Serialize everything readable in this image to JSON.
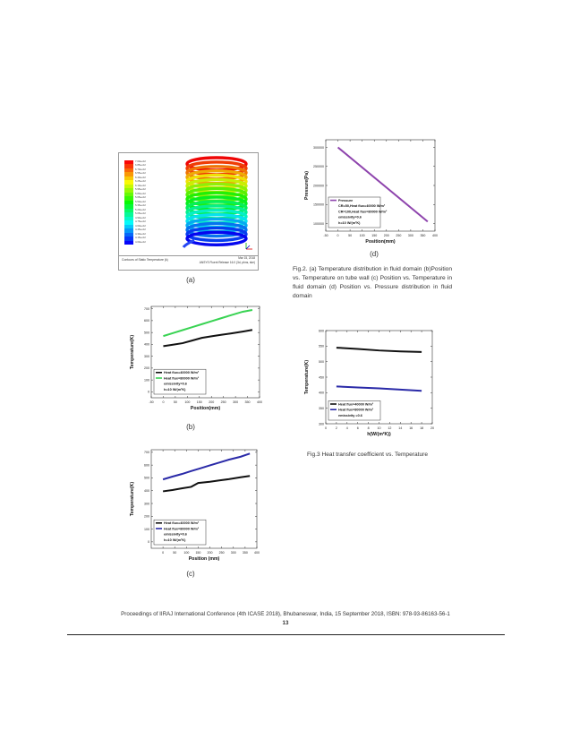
{
  "labels": {
    "a": "(a)",
    "b": "(b)",
    "c": "(c)",
    "d": "(d)"
  },
  "figure_a": {
    "footer_left": "Contours of Static Temperature (k)",
    "footer_right_1": "Mar 15, 2018",
    "footer_right_2": "ANSYS Fluent Release 16.0 (3d, pbns, ske)",
    "colorbar_count": 21,
    "colorbar_top": "#ff0000",
    "colorbar_bottom": "#0000ff",
    "colorbar_values": [
      "7.00e+02",
      "6.85e+02",
      "6.70e+02",
      "6.55e+02",
      "6.40e+02",
      "6.25e+02",
      "6.10e+02",
      "5.95e+02",
      "5.80e+02",
      "5.65e+02",
      "5.50e+02",
      "5.35e+02",
      "5.20e+02",
      "5.05e+02",
      "4.90e+02",
      "4.75e+02",
      "4.60e+02",
      "4.45e+02",
      "4.30e+02",
      "4.15e+02",
      "4.00e+02"
    ]
  },
  "captions": {
    "fig2": "Fig.2. (a) Temperature distribution in fluid domain (b)Position vs. Temperature on tube wall (c) Position vs. Temperature in fluid domain (d) Position vs. Pressure distribution in fluid domain",
    "fig3": "Fig.3 Heat transfer coefficient vs. Temperature"
  },
  "footer": {
    "line": "Proceedings of IIRAJ International Conference (4th ICASE 2018), Bhubaneswar, India, 15 September 2018, ISBN: 978-93-86163-56-1",
    "page": "13"
  },
  "chart_data": [
    {
      "id": "b",
      "type": "line",
      "xlabel": "Position(mm)",
      "ylabel": "Temperature(K)",
      "xlim": [
        -50,
        400
      ],
      "ylim": [
        -50,
        720
      ],
      "xticks": [
        -50,
        0,
        50,
        100,
        150,
        200,
        250,
        300,
        350,
        400
      ],
      "yticks": [
        0,
        100,
        200,
        300,
        400,
        500,
        600,
        700
      ],
      "legend": "bottom-left",
      "legend_lines": [
        "Heat flux=40000 W/m²",
        "Heat flux=80000 W/m²",
        "emissivity=0.6",
        "h=10 W/(m²K)"
      ],
      "series": [
        {
          "name": "Heat flux=40000 W/m²",
          "color": "#111111",
          "x": [
            0,
            40,
            80,
            120,
            160,
            200,
            240,
            280,
            330,
            370
          ],
          "y": [
            385,
            397,
            410,
            432,
            455,
            468,
            480,
            492,
            508,
            522
          ]
        },
        {
          "name": "Heat flux=80000 W/m²",
          "color": "#39d353",
          "x": [
            0,
            40,
            80,
            120,
            160,
            200,
            240,
            280,
            330,
            370
          ],
          "y": [
            470,
            495,
            520,
            545,
            570,
            595,
            620,
            645,
            675,
            690
          ]
        }
      ]
    },
    {
      "id": "c",
      "type": "line",
      "xlabel": "Position (mm)",
      "ylabel": "Temperature(K)",
      "xlim": [
        -50,
        400
      ],
      "ylim": [
        -50,
        720
      ],
      "xticks": [
        0,
        50,
        100,
        150,
        200,
        250,
        300,
        350,
        400
      ],
      "yticks": [
        0,
        100,
        200,
        300,
        400,
        500,
        600,
        700
      ],
      "legend": "bottom-left",
      "legend_lines": [
        "Heat flux=40000 W/m²",
        "Heat flux=80000 W/m²",
        "emissivity=0.6",
        "h=10 W/(m²K)"
      ],
      "series": [
        {
          "name": "Heat flux=40000 W/m²",
          "color": "#111111",
          "x": [
            0,
            40,
            80,
            120,
            150,
            200,
            240,
            280,
            330,
            370
          ],
          "y": [
            395,
            405,
            418,
            430,
            460,
            470,
            480,
            490,
            505,
            515
          ]
        },
        {
          "name": "Heat flux=80000 W/m²",
          "color": "#2a2aa8",
          "x": [
            0,
            40,
            80,
            120,
            160,
            200,
            240,
            280,
            330,
            370
          ],
          "y": [
            488,
            510,
            530,
            553,
            575,
            598,
            620,
            642,
            665,
            690
          ]
        }
      ]
    },
    {
      "id": "d",
      "type": "line",
      "xlabel": "Position(mm)",
      "ylabel": "Pressure(Pa)",
      "xlim": [
        -50,
        400
      ],
      "ylim": [
        80000,
        320000
      ],
      "xticks": [
        -50,
        0,
        50,
        100,
        150,
        200,
        250,
        300,
        350,
        400
      ],
      "yticks": [
        100000,
        150000,
        200000,
        250000,
        300000
      ],
      "legend": "bottom-left",
      "legend_lines": [
        "Pressure",
        "CR=50,Heat flux=40000 W/m²",
        "CR=100,Heat flux=80000 W/m²",
        "emissivity=0.6",
        "h=10 W/(m²K)"
      ],
      "series": [
        {
          "name": "Pressure",
          "color": "#8e44ad",
          "x": [
            0,
            370
          ],
          "y": [
            300000,
            105000
          ]
        }
      ]
    },
    {
      "id": "fig3",
      "type": "line",
      "xlabel": "h(W/(m²K))",
      "ylabel": "Temperature(K)",
      "xlim": [
        0,
        20
      ],
      "ylim": [
        300,
        600
      ],
      "xticks": [
        0,
        2,
        4,
        6,
        8,
        10,
        12,
        14,
        16,
        18,
        20
      ],
      "yticks": [
        300,
        350,
        400,
        450,
        500,
        550,
        600
      ],
      "legend": "bottom-left",
      "legend_lines": [
        "Heat flux=40000 W/m²",
        "Heat flux=80000 W/m²",
        "emissivity =0.6"
      ],
      "series": [
        {
          "name": "Heat flux=40000 W/m²",
          "color": "#111111",
          "x": [
            2,
            6,
            10,
            14,
            18
          ],
          "y": [
            545,
            541,
            536,
            533,
            531
          ]
        },
        {
          "name": "Heat flux=80000 W/m²",
          "color": "#2a2aa8",
          "x": [
            2,
            6,
            10,
            14,
            18
          ],
          "y": [
            420,
            417,
            414,
            410,
            406
          ]
        }
      ]
    }
  ]
}
